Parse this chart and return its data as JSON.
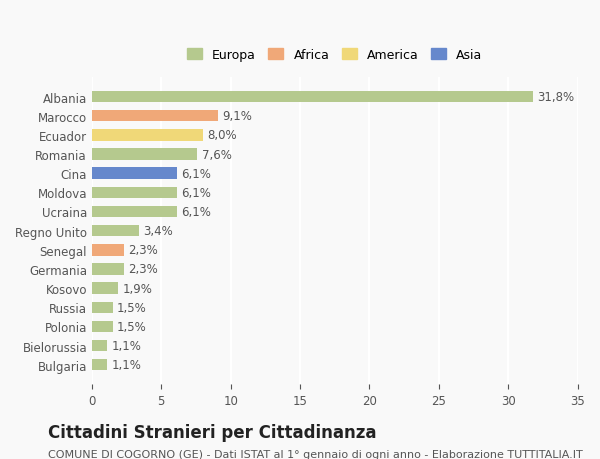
{
  "countries": [
    "Albania",
    "Marocco",
    "Ecuador",
    "Romania",
    "Cina",
    "Moldova",
    "Ucraina",
    "Regno Unito",
    "Senegal",
    "Germania",
    "Kosovo",
    "Russia",
    "Polonia",
    "Bielorussia",
    "Bulgaria"
  ],
  "values": [
    31.8,
    9.1,
    8.0,
    7.6,
    6.1,
    6.1,
    6.1,
    3.4,
    2.3,
    2.3,
    1.9,
    1.5,
    1.5,
    1.1,
    1.1
  ],
  "labels": [
    "31,8%",
    "9,1%",
    "8,0%",
    "7,6%",
    "6,1%",
    "6,1%",
    "6,1%",
    "3,4%",
    "2,3%",
    "2,3%",
    "1,9%",
    "1,5%",
    "1,5%",
    "1,1%",
    "1,1%"
  ],
  "continents": [
    "Europa",
    "Africa",
    "America",
    "Europa",
    "Asia",
    "Europa",
    "Europa",
    "Europa",
    "Africa",
    "Europa",
    "Europa",
    "Europa",
    "Europa",
    "Europa",
    "Europa"
  ],
  "continent_colors": {
    "Europa": "#b5c98e",
    "Africa": "#f0a878",
    "America": "#f0d878",
    "Asia": "#6688cc"
  },
  "legend_items": [
    "Europa",
    "Africa",
    "America",
    "Asia"
  ],
  "legend_colors": [
    "#b5c98e",
    "#f0a878",
    "#f0d878",
    "#6688cc"
  ],
  "xlim": [
    0,
    35
  ],
  "xticks": [
    0,
    5,
    10,
    15,
    20,
    25,
    30,
    35
  ],
  "title": "Cittadini Stranieri per Cittadinanza",
  "subtitle": "COMUNE DI COGORNO (GE) - Dati ISTAT al 1° gennaio di ogni anno - Elaborazione TUTTITALIA.IT",
  "background_color": "#f9f9f9",
  "grid_color": "#ffffff",
  "bar_height": 0.6,
  "label_fontsize": 8.5,
  "tick_fontsize": 8.5,
  "title_fontsize": 12,
  "subtitle_fontsize": 8
}
